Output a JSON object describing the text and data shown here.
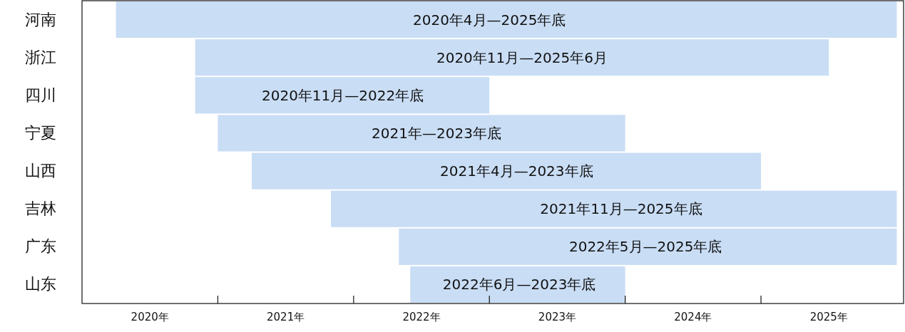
{
  "chart_data": {
    "type": "bar",
    "orientation": "horizontal",
    "categories": [
      "河南",
      "浙江",
      "四川",
      "宁夏",
      "山西",
      "吉林",
      "广东",
      "山东"
    ],
    "base": [
      2020.25,
      2020.833,
      2020.833,
      2021.0,
      2021.25,
      2021.833,
      2022.333,
      2022.417
    ],
    "values": [
      5.75,
      4.667,
      2.167,
      3.0,
      3.75,
      4.167,
      3.667,
      1.583
    ],
    "color": "#c9ddf5",
    "annotations": [
      {
        "text": "2020年4月—2025年底",
        "x": 2023.0,
        "y": "河南"
      },
      {
        "text": "2020年11月—2025年6月",
        "x": 2023.24,
        "y": "浙江"
      },
      {
        "text": "2020年11月—2022年底",
        "x": 2021.92,
        "y": "四川"
      },
      {
        "text": "2021年—2023年底",
        "x": 2022.61,
        "y": "宁夏"
      },
      {
        "text": "2021年4月—2023年底",
        "x": 2023.2,
        "y": "山西"
      },
      {
        "text": "2021年11月—2025年底",
        "x": 2023.97,
        "y": "吉林"
      },
      {
        "text": "2022年5月—2025年底",
        "x": 2024.15,
        "y": "广东"
      },
      {
        "text": "2022年6月—2023年底",
        "x": 2023.22,
        "y": "山东"
      }
    ],
    "xlim": [
      2020,
      2026.05
    ],
    "xticks": [
      {
        "value": 2020.5,
        "label": "2020年"
      },
      {
        "value": 2021,
        "label": null
      },
      {
        "value": 2021.5,
        "label": "2021年"
      },
      {
        "value": 2022,
        "label": null
      },
      {
        "value": 2022.5,
        "label": "2022年"
      },
      {
        "value": 2023,
        "label": null
      },
      {
        "value": 2023.5,
        "label": "2023年"
      },
      {
        "value": 2024,
        "label": null
      },
      {
        "value": 2024.5,
        "label": "2024年"
      },
      {
        "value": 2025,
        "label": null
      },
      {
        "value": 2025.5,
        "label": "2025年"
      }
    ],
    "grid": false
  }
}
